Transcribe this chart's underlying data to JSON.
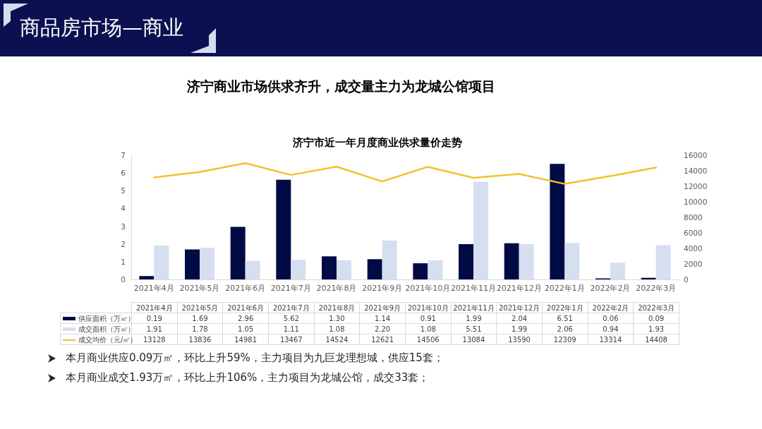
{
  "chart_data": {
    "type": "bar",
    "title": "济宁市近一年月度商业供求量价走势",
    "annotations": [
      "商品房市场—商业",
      "济宁商业市场供求齐升，成交量主力为龙城公馆项目",
      "本月商业供应0.09万㎡，环比上升59%，主力项目为九巨龙理想城，供应15套；",
      "本月商业成交1.93万㎡，环比上升106%，主力项目为龙城公馆，成交33套；"
    ],
    "categories": [
      "2021年4月",
      "2021年5月",
      "2021年6月",
      "2021年7月",
      "2021年8月",
      "2021年9月",
      "2021年10月",
      "2021年11月",
      "2021年12月",
      "2022年1月",
      "2022年2月",
      "2022年3月"
    ],
    "series": [
      {
        "name": "供应面积（万㎡）",
        "color": "#000b45",
        "values": [
          0.19,
          1.69,
          2.96,
          5.62,
          1.3,
          1.14,
          0.91,
          1.99,
          2.04,
          6.51,
          0.06,
          0.09
        ],
        "value_labels": [
          "0.19",
          "1.69",
          "2.96",
          "5.62",
          "1.30",
          "1.14",
          "0.91",
          "1.99",
          "2.04",
          "6.51",
          "0.06",
          "0.09"
        ]
      },
      {
        "name": "成交面积（万㎡）",
        "color": "#d6dff0",
        "values": [
          1.91,
          1.78,
          1.05,
          1.11,
          1.08,
          2.2,
          1.08,
          5.51,
          1.99,
          2.06,
          0.94,
          1.93
        ],
        "value_labels": [
          "1.91",
          "1.78",
          "1.05",
          "1.11",
          "1.08",
          "2.20",
          "1.08",
          "5.51",
          "1.99",
          "2.06",
          "0.94",
          "1.93"
        ]
      },
      {
        "name": "成交均价（元/㎡）",
        "type": "line",
        "axis": "y2",
        "color": "#f2c12e",
        "values": [
          13128,
          13836,
          14981,
          13467,
          14524,
          12621,
          14506,
          13084,
          13590,
          12309,
          13314,
          14408
        ],
        "value_labels": [
          "13128",
          "13836",
          "14981",
          "13467",
          "14524",
          "12621",
          "14506",
          "13084",
          "13590",
          "12309",
          "13314",
          "14408"
        ]
      }
    ],
    "ylim": [
      0,
      7
    ],
    "yticks": [
      0,
      1,
      2,
      3,
      4,
      5,
      6,
      7
    ],
    "y2lim": [
      0,
      16000
    ],
    "y2ticks": [
      0,
      2000,
      4000,
      6000,
      8000,
      10000,
      12000,
      14000,
      16000
    ],
    "grid": false,
    "legend": "bottom",
    "marker": "none",
    "line_style": "solid"
  }
}
